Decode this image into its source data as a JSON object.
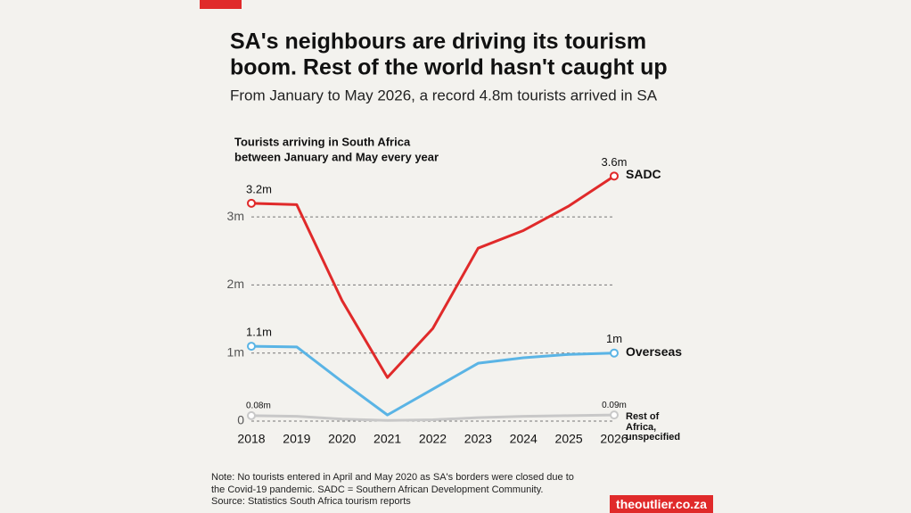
{
  "chart_data": {
    "type": "line",
    "title": [
      "SA's neighbours are driving its tourism",
      "boom. Rest of the world hasn't caught up"
    ],
    "subtitle": "From January to May 2026, a record 4.8m tourists arrived in SA",
    "ylabel": [
      "Tourists arriving in South Africa",
      "between January and May every year"
    ],
    "categories": [
      "2018",
      "2019",
      "2020",
      "2021",
      "2022",
      "2023",
      "2024",
      "2025",
      "2026"
    ],
    "series": [
      {
        "name": "SADC",
        "color": "#e02a2a",
        "values": [
          3.2,
          3.18,
          1.77,
          0.64,
          1.36,
          2.54,
          2.8,
          3.16,
          3.6
        ],
        "value_labels": [
          "3.2m",
          null,
          null,
          null,
          null,
          null,
          null,
          null,
          "3.6m"
        ]
      },
      {
        "name": "Overseas",
        "color": "#5ab4e5",
        "values": [
          1.1,
          1.09,
          0.58,
          0.09,
          0.47,
          0.85,
          0.93,
          0.98,
          1.0
        ],
        "value_labels": [
          "1.1m",
          null,
          null,
          null,
          null,
          null,
          null,
          null,
          "1m"
        ]
      },
      {
        "name": "Rest of Africa, unspecified",
        "color": "#c8c8c8",
        "values": [
          0.08,
          0.07,
          0.03,
          0.01,
          0.02,
          0.05,
          0.07,
          0.08,
          0.09
        ],
        "value_labels": [
          "0.08m",
          null,
          null,
          null,
          null,
          null,
          null,
          null,
          "0.09m"
        ]
      }
    ],
    "ylim": [
      0,
      3.8
    ],
    "yticks": [
      0,
      {
        "value": 1,
        "label": "1m"
      },
      {
        "value": 2,
        "label": "2m"
      },
      {
        "value": 3,
        "label": "3m"
      }
    ],
    "grid": true,
    "notes": [
      "Note: No tourists entered in April and May 2020 as SA's borders were closed due to",
      "the Covid-19 pandemic. SADC = Southern African Development Community.",
      "Source: Statistics South Africa tourism reports"
    ],
    "source_brand": "theoutlier.co.za"
  }
}
